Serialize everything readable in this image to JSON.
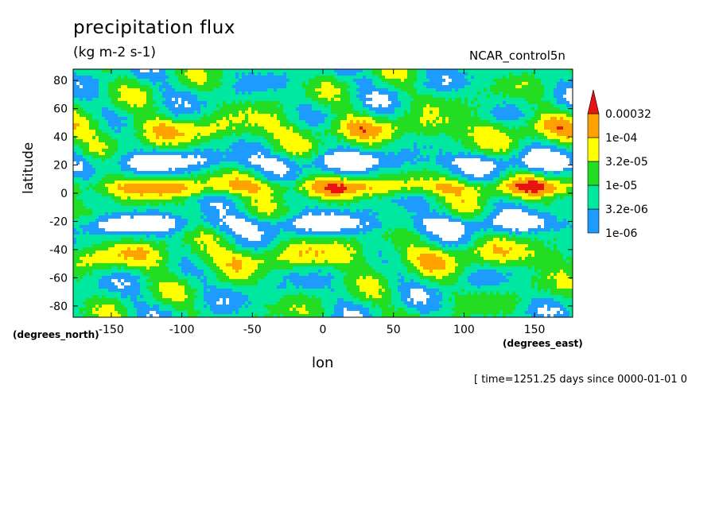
{
  "chart_data": {
    "type": "heatmap",
    "title": "precipitation flux",
    "units": "(kg m-2 s-1)",
    "dataset": "NCAR_control5n",
    "xlabel": "lon",
    "ylabel": "latitude",
    "x_units_label": "(degrees_east)",
    "y_units_label": "(degrees_north)",
    "xlim": [
      -177,
      177
    ],
    "ylim": [
      -88,
      88
    ],
    "x_ticks": [
      -150,
      -100,
      -50,
      0,
      50,
      100,
      150
    ],
    "y_ticks": [
      80,
      60,
      40,
      20,
      0,
      -20,
      -40,
      -60,
      -80
    ],
    "colorbar": {
      "levels": [
        "1e-06",
        "3.2e-06",
        "1e-05",
        "3.2e-05",
        "1e-04",
        "0.00032"
      ],
      "colors": [
        "#ffffff",
        "#1e9bff",
        "#00e8a0",
        "#22dd22",
        "#ffff00",
        "#ffa200",
        "#e81414"
      ]
    },
    "timestamp": "[ time=1251.25 days since 0000-01-01 0"
  }
}
